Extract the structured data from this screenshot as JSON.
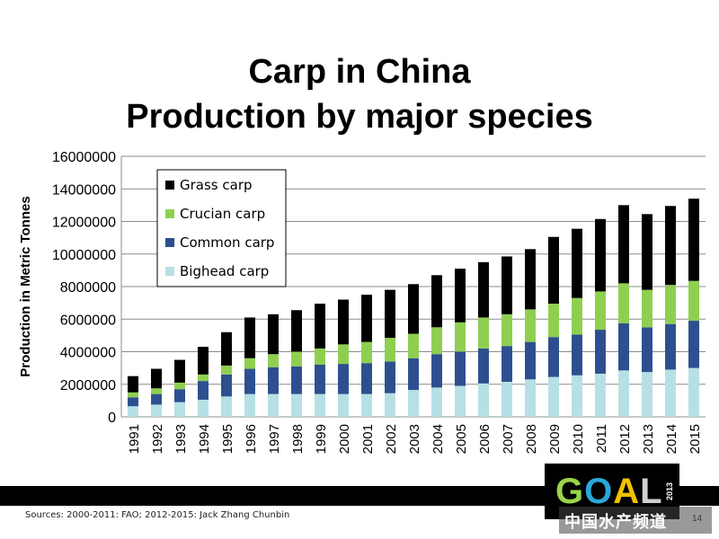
{
  "title_line1": "Carp in China",
  "title_line2": "Production by major species",
  "sources": "Sources: 2000-2011: FAO; 2012-2015: Jack Zhang Chunbin",
  "page_number": "14",
  "logo": {
    "g": "G",
    "o": "O",
    "a": "A",
    "l": "L",
    "year": "2013"
  },
  "watermark": "中国水产频道",
  "chart_data": {
    "type": "bar",
    "stacked": true,
    "ylabel": "Production in Metric Tonnes",
    "ylim": [
      0,
      16000000
    ],
    "yticks": [
      "0",
      "2000000",
      "4000000",
      "6000000",
      "8000000",
      "10000000",
      "12000000",
      "14000000",
      "16000000"
    ],
    "grid": true,
    "legend_position": "top-left",
    "categories": [
      "1991",
      "1992",
      "1993",
      "1994",
      "1995",
      "1996",
      "1997",
      "1998",
      "1999",
      "2000",
      "2001",
      "2002",
      "2003",
      "2004",
      "2005",
      "2006",
      "2007",
      "2008",
      "2009",
      "2010",
      "2011",
      "2012",
      "2013",
      "2014",
      "2015"
    ],
    "series": [
      {
        "name": "Bighead carp",
        "color": "#b7e0e4",
        "values": [
          650000,
          750000,
          900000,
          1050000,
          1250000,
          1400000,
          1400000,
          1400000,
          1400000,
          1400000,
          1400000,
          1450000,
          1650000,
          1800000,
          1900000,
          2050000,
          2150000,
          2300000,
          2450000,
          2550000,
          2650000,
          2850000,
          2750000,
          2900000,
          3000000
        ]
      },
      {
        "name": "Common carp",
        "color": "#2e4f8f",
        "values": [
          550000,
          650000,
          800000,
          1150000,
          1350000,
          1550000,
          1650000,
          1700000,
          1800000,
          1850000,
          1900000,
          1950000,
          1950000,
          2050000,
          2100000,
          2150000,
          2200000,
          2300000,
          2450000,
          2500000,
          2700000,
          2900000,
          2750000,
          2800000,
          2900000
        ]
      },
      {
        "name": "Crucian carp",
        "color": "#8fcf50",
        "values": [
          300000,
          350000,
          400000,
          400000,
          550000,
          650000,
          800000,
          900000,
          1000000,
          1200000,
          1300000,
          1450000,
          1500000,
          1650000,
          1800000,
          1900000,
          1950000,
          2000000,
          2050000,
          2250000,
          2350000,
          2450000,
          2300000,
          2400000,
          2450000
        ]
      },
      {
        "name": "Grass carp",
        "color": "#000000",
        "values": [
          1000000,
          1200000,
          1400000,
          1700000,
          2050000,
          2500000,
          2450000,
          2550000,
          2750000,
          2750000,
          2900000,
          2950000,
          3050000,
          3200000,
          3300000,
          3400000,
          3550000,
          3700000,
          4100000,
          4250000,
          4450000,
          4800000,
          4650000,
          4850000,
          5050000
        ]
      }
    ],
    "legend_order": [
      "Grass carp",
      "Crucian carp",
      "Common carp",
      "Bighead carp"
    ]
  }
}
